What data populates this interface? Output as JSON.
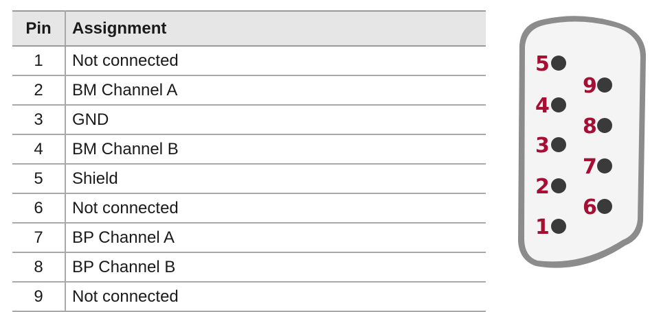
{
  "table": {
    "headers": {
      "pin": "Pin",
      "assignment": "Assignment"
    },
    "rows": [
      {
        "pin": "1",
        "assignment": "Not connected"
      },
      {
        "pin": "2",
        "assignment": "BM Channel A"
      },
      {
        "pin": "3",
        "assignment": "GND"
      },
      {
        "pin": "4",
        "assignment": "BM Channel B"
      },
      {
        "pin": "5",
        "assignment": "Shield"
      },
      {
        "pin": "6",
        "assignment": "Not connected"
      },
      {
        "pin": "7",
        "assignment": "BP Channel A"
      },
      {
        "pin": "8",
        "assignment": "BP Channel B"
      },
      {
        "pin": "9",
        "assignment": "Not connected"
      }
    ]
  },
  "connector": {
    "pin_labels": [
      "1",
      "2",
      "3",
      "4",
      "5",
      "6",
      "7",
      "8",
      "9"
    ],
    "colors": {
      "pin_label": "#a50f33",
      "pin_dot": "#3a3a3a",
      "shell_outer": "#8c8c8c",
      "shell_inner": "#f4f4f4"
    }
  }
}
